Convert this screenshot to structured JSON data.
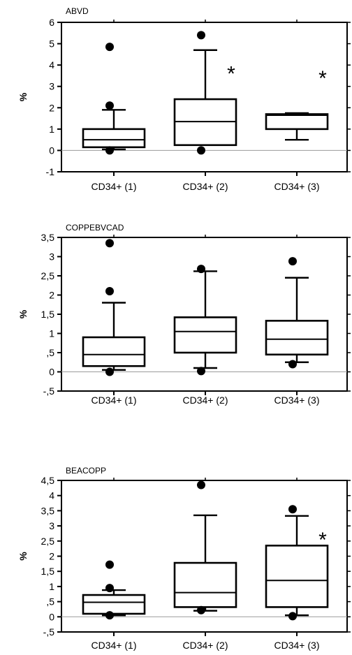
{
  "chart_data": [
    {
      "type": "box",
      "title": "ABVD",
      "ylabel": "%",
      "ylim": [
        -1,
        6
      ],
      "yticks": [
        {
          "value": -1,
          "label": "-1"
        },
        {
          "value": 0,
          "label": "0"
        },
        {
          "value": 1,
          "label": "1"
        },
        {
          "value": 2,
          "label": "2"
        },
        {
          "value": 3,
          "label": "3"
        },
        {
          "value": 4,
          "label": "4"
        },
        {
          "value": 5,
          "label": "5"
        },
        {
          "value": 6,
          "label": "6"
        }
      ],
      "categories": [
        "CD34+ (1)",
        "CD34+ (2)",
        "CD34+ (3)"
      ],
      "boxes": [
        {
          "whisker_low": 0.05,
          "q1": 0.15,
          "median": 0.5,
          "q3": 1.0,
          "whisker_high": 1.9,
          "outliers": [
            0.0,
            2.1,
            4.85
          ],
          "significant": false
        },
        {
          "whisker_low": 0.25,
          "q1": 0.25,
          "median": 1.35,
          "q3": 2.4,
          "whisker_high": 4.7,
          "outliers": [
            0.0,
            5.4
          ],
          "significant": true
        },
        {
          "whisker_low": 0.5,
          "q1": 1.0,
          "median": 1.65,
          "q3": 1.7,
          "whisker_high": 1.75,
          "outliers": [],
          "significant": true
        }
      ],
      "significance_mark": "*"
    },
    {
      "type": "box",
      "title": "COPPEBVCAD",
      "ylabel": "%",
      "ylim": [
        -0.5,
        3.5
      ],
      "yticks": [
        {
          "value": -0.5,
          "label": "-,5"
        },
        {
          "value": 0,
          "label": "0"
        },
        {
          "value": 0.5,
          "label": ",5"
        },
        {
          "value": 1,
          "label": "1"
        },
        {
          "value": 1.5,
          "label": "1,5"
        },
        {
          "value": 2,
          "label": "2"
        },
        {
          "value": 2.5,
          "label": "2,5"
        },
        {
          "value": 3,
          "label": "3"
        },
        {
          "value": 3.5,
          "label": "3,5"
        }
      ],
      "categories": [
        "CD34+ (1)",
        "CD34+ (2)",
        "CD34+ (3)"
      ],
      "boxes": [
        {
          "whisker_low": 0.05,
          "q1": 0.15,
          "median": 0.45,
          "q3": 0.9,
          "whisker_high": 1.8,
          "outliers": [
            0.0,
            2.1,
            3.35
          ],
          "significant": false
        },
        {
          "whisker_low": 0.1,
          "q1": 0.5,
          "median": 1.05,
          "q3": 1.42,
          "whisker_high": 2.62,
          "outliers": [
            0.02,
            2.68
          ],
          "significant": false
        },
        {
          "whisker_low": 0.25,
          "q1": 0.45,
          "median": 0.85,
          "q3": 1.33,
          "whisker_high": 2.45,
          "outliers": [
            0.2,
            2.88
          ],
          "significant": false
        }
      ],
      "significance_mark": "*"
    },
    {
      "type": "box",
      "title": "BEACOPP",
      "ylabel": "%",
      "ylim": [
        -0.5,
        4.5
      ],
      "yticks": [
        {
          "value": -0.5,
          "label": "-,5"
        },
        {
          "value": 0,
          "label": "0"
        },
        {
          "value": 0.5,
          "label": ",5"
        },
        {
          "value": 1,
          "label": "1"
        },
        {
          "value": 1.5,
          "label": "1,5"
        },
        {
          "value": 2,
          "label": "2"
        },
        {
          "value": 2.5,
          "label": "2,5"
        },
        {
          "value": 3,
          "label": "3"
        },
        {
          "value": 3.5,
          "label": "3,5"
        },
        {
          "value": 4,
          "label": "4"
        },
        {
          "value": 4.5,
          "label": "4,5"
        }
      ],
      "categories": [
        "CD34+ (1)",
        "CD34+ (2)",
        "CD34+ (3)"
      ],
      "boxes": [
        {
          "whisker_low": 0.05,
          "q1": 0.1,
          "median": 0.48,
          "q3": 0.72,
          "whisker_high": 0.88,
          "outliers": [
            0.05,
            0.95,
            1.72
          ],
          "significant": false
        },
        {
          "whisker_low": 0.2,
          "q1": 0.32,
          "median": 0.8,
          "q3": 1.78,
          "whisker_high": 3.35,
          "outliers": [
            0.22,
            4.35
          ],
          "significant": false
        },
        {
          "whisker_low": 0.05,
          "q1": 0.32,
          "median": 1.2,
          "q3": 2.35,
          "whisker_high": 3.33,
          "outliers": [
            0.02,
            3.55
          ],
          "significant": true
        }
      ],
      "significance_mark": "*"
    }
  ]
}
